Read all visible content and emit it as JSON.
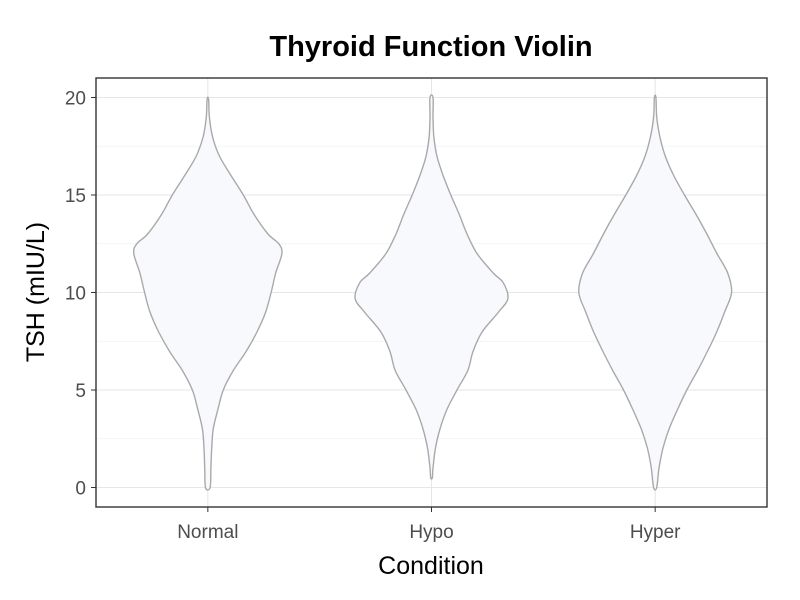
{
  "chart_data": {
    "type": "violin",
    "title": "Thyroid Function Violin",
    "xlabel": "Condition",
    "ylabel": "TSH (mIU/L)",
    "categories": [
      "Normal",
      "Hypo",
      "Hyper"
    ],
    "ylim": [
      -1,
      21
    ],
    "yticks": [
      0,
      5,
      10,
      15,
      20
    ],
    "grid": true,
    "legend": "none",
    "colors": {
      "fill": "#f8f9fd",
      "outline": "#a9a9a9"
    },
    "violins": [
      {
        "category": "Normal",
        "y_range": [
          0,
          19.9
        ],
        "density_profile": [
          [
            0,
            0.03
          ],
          [
            1,
            0.04
          ],
          [
            2,
            0.05
          ],
          [
            3,
            0.07
          ],
          [
            4,
            0.13
          ],
          [
            5,
            0.2
          ],
          [
            6,
            0.33
          ],
          [
            7,
            0.5
          ],
          [
            8,
            0.64
          ],
          [
            9,
            0.75
          ],
          [
            10,
            0.82
          ],
          [
            11,
            0.88
          ],
          [
            12,
            0.96
          ],
          [
            12.5,
            0.92
          ],
          [
            13,
            0.78
          ],
          [
            14,
            0.6
          ],
          [
            15,
            0.46
          ],
          [
            16,
            0.3
          ],
          [
            17,
            0.15
          ],
          [
            18,
            0.06
          ],
          [
            19,
            0.02
          ],
          [
            19.9,
            0.01
          ]
        ]
      },
      {
        "category": "Hypo",
        "y_range": [
          0.5,
          20
        ],
        "density_profile": [
          [
            0.5,
            0.01
          ],
          [
            1,
            0.02
          ],
          [
            2,
            0.05
          ],
          [
            3,
            0.11
          ],
          [
            4,
            0.2
          ],
          [
            5,
            0.33
          ],
          [
            6,
            0.47
          ],
          [
            7,
            0.54
          ],
          [
            8,
            0.66
          ],
          [
            9,
            0.87
          ],
          [
            9.7,
            0.99
          ],
          [
            10.5,
            0.93
          ],
          [
            11,
            0.8
          ],
          [
            12,
            0.59
          ],
          [
            13,
            0.46
          ],
          [
            14,
            0.36
          ],
          [
            15,
            0.25
          ],
          [
            16,
            0.15
          ],
          [
            17,
            0.07
          ],
          [
            18,
            0.03
          ],
          [
            19,
            0.02
          ],
          [
            20,
            0.02
          ]
        ]
      },
      {
        "category": "Hyper",
        "y_range": [
          0,
          20
        ],
        "density_profile": [
          [
            0,
            0.02
          ],
          [
            1,
            0.05
          ],
          [
            2,
            0.1
          ],
          [
            3,
            0.18
          ],
          [
            4,
            0.29
          ],
          [
            5,
            0.41
          ],
          [
            6,
            0.55
          ],
          [
            7,
            0.68
          ],
          [
            8,
            0.8
          ],
          [
            9,
            0.9
          ],
          [
            10,
            0.99
          ],
          [
            11,
            0.94
          ],
          [
            12,
            0.8
          ],
          [
            13,
            0.67
          ],
          [
            14,
            0.53
          ],
          [
            15,
            0.38
          ],
          [
            16,
            0.24
          ],
          [
            17,
            0.13
          ],
          [
            18,
            0.06
          ],
          [
            19,
            0.02
          ],
          [
            20,
            0.01
          ]
        ]
      }
    ]
  }
}
